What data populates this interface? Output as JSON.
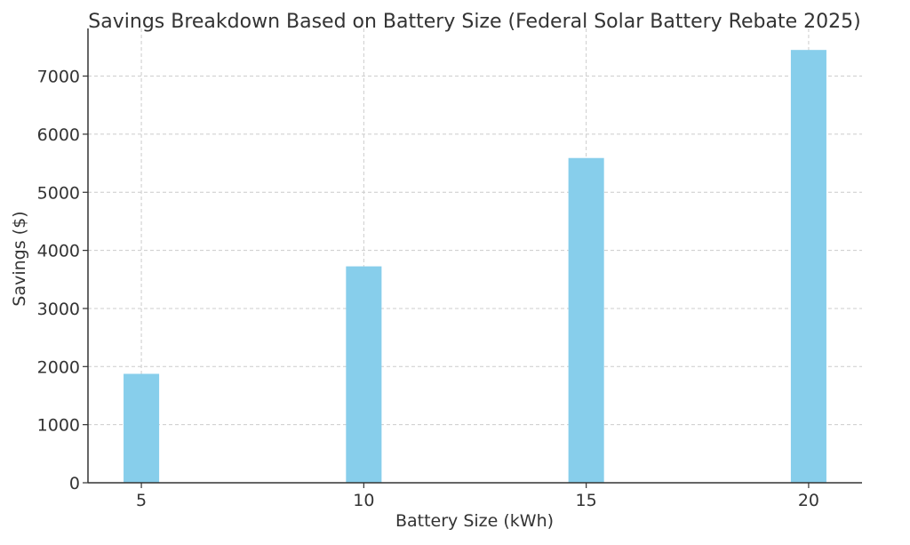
{
  "chart_data": {
    "type": "bar",
    "title": "Savings Breakdown Based on Battery Size (Federal Solar Battery Rebate 2025)",
    "xlabel": "Battery Size (kWh)",
    "ylabel": "Savings ($)",
    "x": [
      5,
      10,
      15,
      20
    ],
    "categories": [
      "5",
      "10",
      "15",
      "20"
    ],
    "values": [
      1875,
      3725,
      5590,
      7450
    ],
    "xlim": [
      3.8,
      21.2
    ],
    "ylim": [
      0,
      7820
    ],
    "yticks": [
      0,
      1000,
      2000,
      3000,
      4000,
      5000,
      6000,
      7000
    ],
    "grid": true,
    "bar_color": "#87CEEB",
    "grid_color": "#cccccc",
    "text_color": "#333333"
  }
}
